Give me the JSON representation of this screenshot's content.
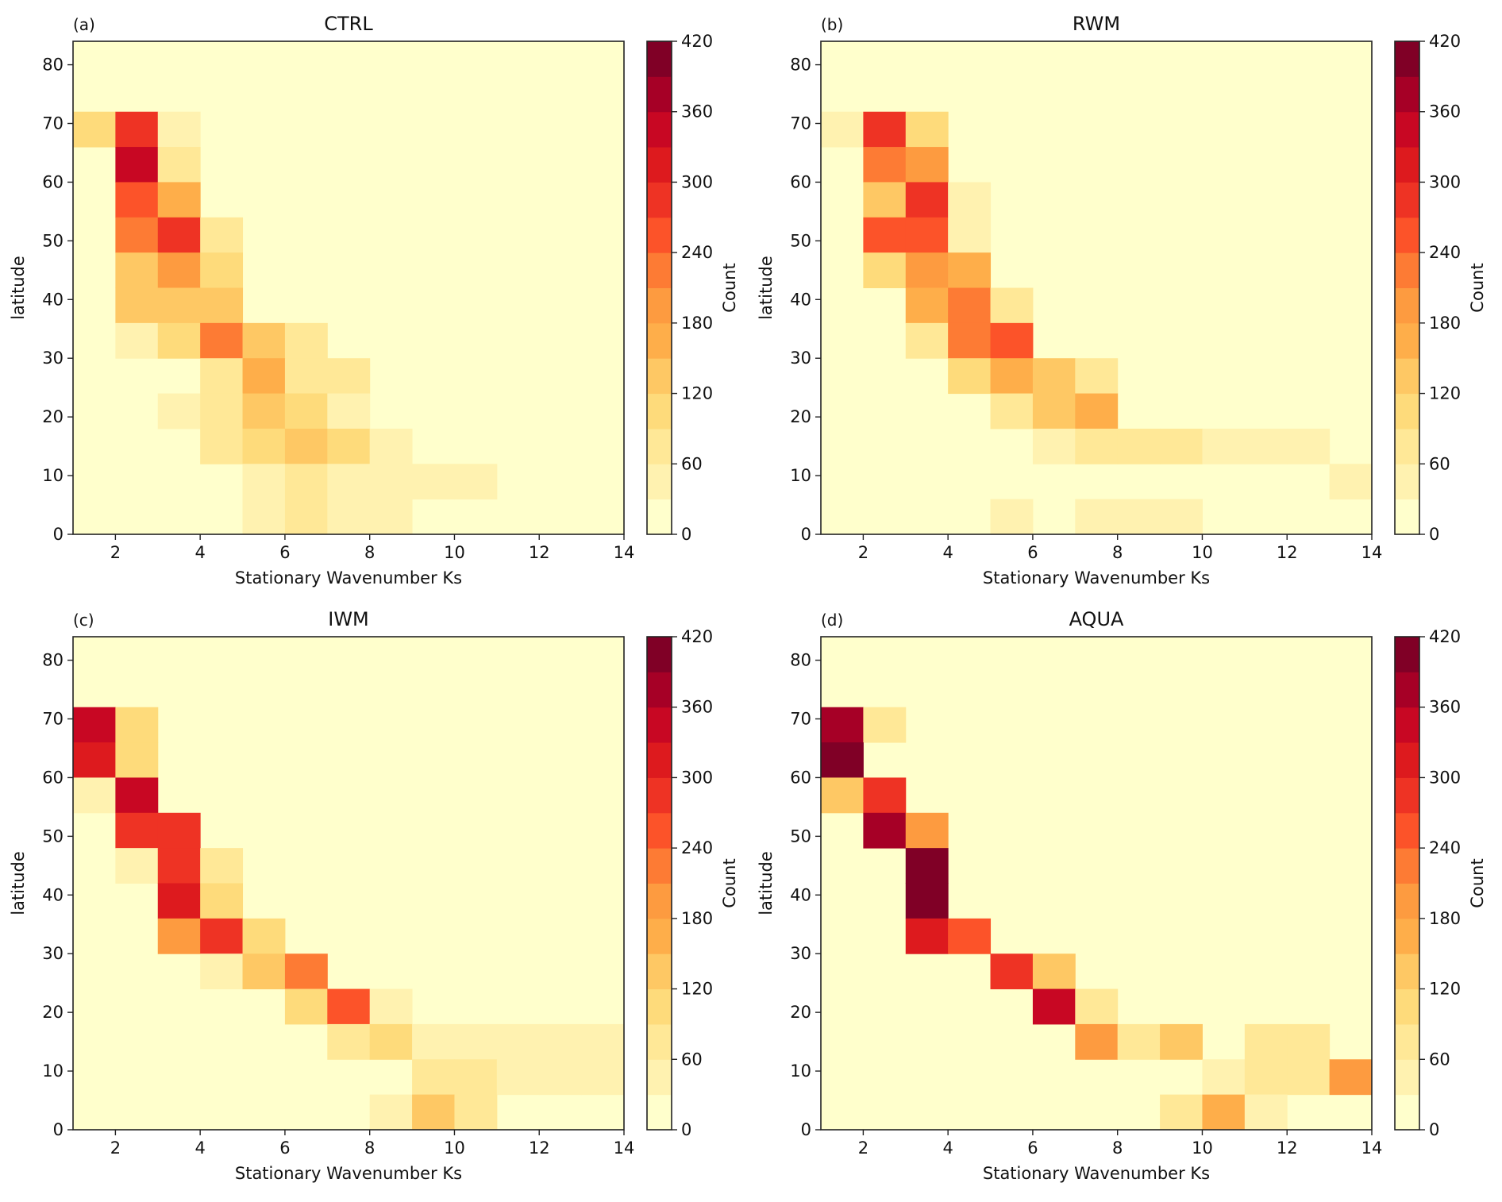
{
  "chart_data": [
    {
      "type": "heatmap",
      "panel_label": "(a)",
      "title": "CTRL",
      "xlabel": "Stationary Wavenumber Ks",
      "ylabel": "latitude",
      "colorbar_label": "Count",
      "xlim": [
        1,
        14
      ],
      "ylim": [
        0,
        84
      ],
      "x_bin_width": 1,
      "y_bin_height": 6,
      "xticks": [
        2,
        4,
        6,
        8,
        10,
        12,
        14
      ],
      "yticks": [
        0,
        10,
        20,
        30,
        40,
        50,
        60,
        70,
        80
      ],
      "cells_note": "each cell: [x_left, lat_bottom, count]; unlisted cells are 0-30",
      "cells": [
        [
          1,
          66,
          105
        ],
        [
          2,
          66,
          285
        ],
        [
          3,
          66,
          45
        ],
        [
          2,
          60,
          345
        ],
        [
          3,
          60,
          75
        ],
        [
          2,
          54,
          255
        ],
        [
          3,
          54,
          165
        ],
        [
          2,
          48,
          225
        ],
        [
          3,
          48,
          285
        ],
        [
          4,
          48,
          75
        ],
        [
          2,
          42,
          135
        ],
        [
          3,
          42,
          195
        ],
        [
          4,
          42,
          105
        ],
        [
          2,
          36,
          135
        ],
        [
          3,
          36,
          135
        ],
        [
          4,
          36,
          135
        ],
        [
          2,
          30,
          45
        ],
        [
          3,
          30,
          105
        ],
        [
          4,
          30,
          225
        ],
        [
          5,
          30,
          135
        ],
        [
          6,
          30,
          75
        ],
        [
          4,
          24,
          75
        ],
        [
          5,
          24,
          165
        ],
        [
          6,
          24,
          75
        ],
        [
          7,
          24,
          75
        ],
        [
          3,
          18,
          45
        ],
        [
          4,
          18,
          75
        ],
        [
          5,
          18,
          135
        ],
        [
          6,
          18,
          105
        ],
        [
          7,
          18,
          45
        ],
        [
          4,
          12,
          75
        ],
        [
          5,
          12,
          105
        ],
        [
          6,
          12,
          135
        ],
        [
          7,
          12,
          105
        ],
        [
          8,
          12,
          45
        ],
        [
          5,
          6,
          45
        ],
        [
          6,
          6,
          75
        ],
        [
          7,
          6,
          45
        ],
        [
          8,
          6,
          45
        ],
        [
          9,
          6,
          45
        ],
        [
          10,
          6,
          45
        ],
        [
          5,
          0,
          45
        ],
        [
          6,
          0,
          75
        ],
        [
          7,
          0,
          45
        ],
        [
          8,
          0,
          45
        ]
      ]
    },
    {
      "type": "heatmap",
      "panel_label": "(b)",
      "title": "RWM",
      "xlabel": "Stationary Wavenumber Ks",
      "ylabel": "latitude",
      "colorbar_label": "Count",
      "xlim": [
        1,
        14
      ],
      "ylim": [
        0,
        84
      ],
      "x_bin_width": 1,
      "y_bin_height": 6,
      "xticks": [
        2,
        4,
        6,
        8,
        10,
        12,
        14
      ],
      "yticks": [
        0,
        10,
        20,
        30,
        40,
        50,
        60,
        70,
        80
      ],
      "cells": [
        [
          1,
          66,
          45
        ],
        [
          2,
          66,
          285
        ],
        [
          3,
          66,
          105
        ],
        [
          2,
          60,
          225
        ],
        [
          3,
          60,
          195
        ],
        [
          2,
          54,
          135
        ],
        [
          3,
          54,
          285
        ],
        [
          4,
          54,
          45
        ],
        [
          2,
          48,
          255
        ],
        [
          3,
          48,
          255
        ],
        [
          4,
          48,
          45
        ],
        [
          2,
          42,
          105
        ],
        [
          3,
          42,
          195
        ],
        [
          4,
          42,
          165
        ],
        [
          3,
          36,
          165
        ],
        [
          4,
          36,
          225
        ],
        [
          5,
          36,
          75
        ],
        [
          3,
          30,
          75
        ],
        [
          4,
          30,
          225
        ],
        [
          5,
          30,
          255
        ],
        [
          4,
          24,
          105
        ],
        [
          5,
          24,
          165
        ],
        [
          6,
          24,
          135
        ],
        [
          7,
          24,
          75
        ],
        [
          5,
          18,
          75
        ],
        [
          6,
          18,
          135
        ],
        [
          7,
          18,
          165
        ],
        [
          6,
          12,
          45
        ],
        [
          7,
          12,
          75
        ],
        [
          8,
          12,
          75
        ],
        [
          9,
          12,
          75
        ],
        [
          10,
          12,
          45
        ],
        [
          11,
          12,
          45
        ],
        [
          12,
          12,
          45
        ],
        [
          13,
          6,
          45
        ],
        [
          5,
          0,
          45
        ],
        [
          7,
          0,
          45
        ],
        [
          8,
          0,
          45
        ],
        [
          9,
          0,
          45
        ]
      ]
    },
    {
      "type": "heatmap",
      "panel_label": "(c)",
      "title": "IWM",
      "xlabel": "Stationary Wavenumber Ks",
      "ylabel": "latitude",
      "colorbar_label": "Count",
      "xlim": [
        1,
        14
      ],
      "ylim": [
        0,
        84
      ],
      "x_bin_width": 1,
      "y_bin_height": 6,
      "xticks": [
        2,
        4,
        6,
        8,
        10,
        12,
        14
      ],
      "yticks": [
        0,
        10,
        20,
        30,
        40,
        50,
        60,
        70,
        80
      ],
      "cells": [
        [
          1,
          66,
          345
        ],
        [
          2,
          66,
          105
        ],
        [
          1,
          60,
          315
        ],
        [
          2,
          60,
          105
        ],
        [
          1,
          54,
          45
        ],
        [
          2,
          54,
          345
        ],
        [
          2,
          48,
          285
        ],
        [
          3,
          48,
          285
        ],
        [
          2,
          42,
          45
        ],
        [
          3,
          42,
          285
        ],
        [
          4,
          42,
          75
        ],
        [
          3,
          36,
          315
        ],
        [
          4,
          36,
          105
        ],
        [
          3,
          30,
          195
        ],
        [
          4,
          30,
          285
        ],
        [
          5,
          30,
          105
        ],
        [
          4,
          24,
          45
        ],
        [
          5,
          24,
          135
        ],
        [
          6,
          24,
          225
        ],
        [
          6,
          18,
          105
        ],
        [
          7,
          18,
          255
        ],
        [
          8,
          18,
          45
        ],
        [
          7,
          12,
          75
        ],
        [
          8,
          12,
          105
        ],
        [
          9,
          12,
          45
        ],
        [
          10,
          12,
          45
        ],
        [
          11,
          12,
          45
        ],
        [
          12,
          12,
          45
        ],
        [
          13,
          12,
          45
        ],
        [
          9,
          6,
          75
        ],
        [
          10,
          6,
          75
        ],
        [
          11,
          6,
          45
        ],
        [
          12,
          6,
          45
        ],
        [
          13,
          6,
          45
        ],
        [
          8,
          0,
          45
        ],
        [
          9,
          0,
          135
        ],
        [
          10,
          0,
          75
        ]
      ]
    },
    {
      "type": "heatmap",
      "panel_label": "(d)",
      "title": "AQUA",
      "xlabel": "Stationary Wavenumber Ks",
      "ylabel": "latitude",
      "colorbar_label": "Count",
      "xlim": [
        1,
        14
      ],
      "ylim": [
        0,
        84
      ],
      "x_bin_width": 1,
      "y_bin_height": 6,
      "xticks": [
        2,
        4,
        6,
        8,
        10,
        12,
        14
      ],
      "yticks": [
        0,
        10,
        20,
        30,
        40,
        50,
        60,
        70,
        80
      ],
      "cells": [
        [
          1,
          66,
          375
        ],
        [
          2,
          66,
          75
        ],
        [
          1,
          60,
          405
        ],
        [
          1,
          54,
          135
        ],
        [
          2,
          54,
          285
        ],
        [
          2,
          48,
          375
        ],
        [
          3,
          48,
          195
        ],
        [
          3,
          42,
          405
        ],
        [
          3,
          36,
          405
        ],
        [
          3,
          30,
          315
        ],
        [
          4,
          30,
          255
        ],
        [
          5,
          24,
          285
        ],
        [
          6,
          24,
          135
        ],
        [
          6,
          18,
          345
        ],
        [
          7,
          18,
          75
        ],
        [
          7,
          12,
          195
        ],
        [
          8,
          12,
          75
        ],
        [
          9,
          12,
          135
        ],
        [
          11,
          12,
          75
        ],
        [
          12,
          12,
          75
        ],
        [
          10,
          6,
          45
        ],
        [
          11,
          6,
          75
        ],
        [
          12,
          6,
          75
        ],
        [
          13,
          6,
          195
        ],
        [
          9,
          0,
          75
        ],
        [
          10,
          0,
          165
        ],
        [
          11,
          0,
          45
        ]
      ]
    }
  ],
  "colorbar": {
    "label": "Count",
    "range": [
      0,
      420
    ],
    "bin_size": 30,
    "ticks": [
      0,
      60,
      120,
      180,
      240,
      300,
      360,
      420
    ],
    "colors": [
      "#ffffcc",
      "#fff2b0",
      "#ffe897",
      "#fedb7b",
      "#fec864",
      "#feae4a",
      "#fd9b40",
      "#fd7b34",
      "#fc5329",
      "#ee3324",
      "#dd1a1e",
      "#c80723",
      "#a60026",
      "#800026"
    ]
  }
}
